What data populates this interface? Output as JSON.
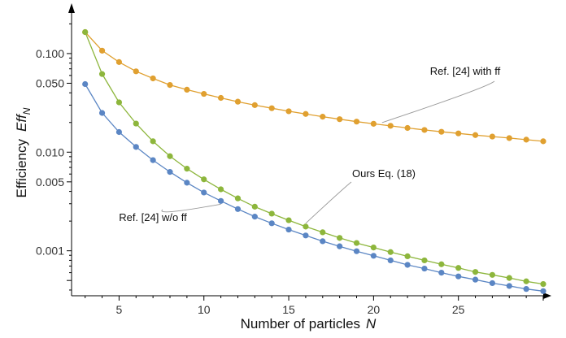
{
  "chart_data": {
    "type": "line",
    "title": "",
    "xlabel": "Number of particles",
    "xlabel_var": "N",
    "ylabel": "Efficiency",
    "ylabel_var": "Eff",
    "ylabel_sub": "N",
    "y_scale": "log",
    "xlim": [
      2.2,
      30
    ],
    "ylim": [
      0.00035,
      0.3
    ],
    "x_ticks": [
      5,
      10,
      15,
      20,
      25
    ],
    "x_tick_labels": [
      "5",
      "10",
      "15",
      "20",
      "25"
    ],
    "y_ticks": [
      0.1,
      0.05,
      0.01,
      0.005,
      0.001
    ],
    "y_tick_labels": [
      "0.100",
      "0.050",
      "0.010",
      "0.005",
      "0.001"
    ],
    "grid": false,
    "series": [
      {
        "name": "Ref. [24] with ff",
        "color": "#E0A030",
        "x": [
          3,
          4,
          5,
          6,
          7,
          8,
          9,
          10,
          11,
          12,
          13,
          14,
          15,
          16,
          17,
          18,
          19,
          20,
          21,
          22,
          23,
          24,
          25,
          26,
          27,
          28,
          29,
          30
        ],
        "y": [
          0.165,
          0.107,
          0.082,
          0.066,
          0.056,
          0.048,
          0.043,
          0.039,
          0.0355,
          0.0325,
          0.03,
          0.0279,
          0.026,
          0.0244,
          0.0229,
          0.0216,
          0.0204,
          0.0194,
          0.0185,
          0.0176,
          0.0168,
          0.0161,
          0.0155,
          0.0149,
          0.0144,
          0.0139,
          0.0134,
          0.0129
        ]
      },
      {
        "name": "Ours Eq. (18)",
        "color": "#8DB63C",
        "x": [
          3,
          4,
          5,
          6,
          7,
          8,
          9,
          10,
          11,
          12,
          13,
          14,
          15,
          16,
          17,
          18,
          19,
          20,
          21,
          22,
          23,
          24,
          25,
          26,
          27,
          28,
          29,
          30
        ],
        "y": [
          0.165,
          0.062,
          0.032,
          0.0195,
          0.0129,
          0.0091,
          0.0068,
          0.0053,
          0.0042,
          0.0034,
          0.0028,
          0.00238,
          0.00204,
          0.00176,
          0.00154,
          0.00135,
          0.0012,
          0.00108,
          0.00097,
          0.00088,
          0.0008,
          0.00073,
          0.00067,
          0.00061,
          0.00057,
          0.00053,
          0.00049,
          0.00046
        ]
      },
      {
        "name": "Ref. [24] w/o ff",
        "color": "#5B86C4",
        "x": [
          3,
          4,
          5,
          6,
          7,
          8,
          9,
          10,
          11,
          12,
          13,
          14,
          15,
          16,
          17,
          18,
          19,
          20,
          21,
          22,
          23,
          24,
          25,
          26,
          27,
          28,
          29,
          30
        ],
        "y": [
          0.049,
          0.025,
          0.016,
          0.0113,
          0.0083,
          0.0063,
          0.0049,
          0.0039,
          0.0032,
          0.00265,
          0.00222,
          0.0019,
          0.00164,
          0.00143,
          0.00125,
          0.00111,
          0.00099,
          0.00089,
          0.0008,
          0.00072,
          0.00066,
          0.0006,
          0.00055,
          0.00051,
          0.00047,
          0.00044,
          0.00041,
          0.00039
        ]
      }
    ],
    "annotations": [
      {
        "series": 0,
        "text": "Ref. [24] with ff"
      },
      {
        "series": 1,
        "text": "Ours Eq. (18)"
      },
      {
        "series": 2,
        "text": "Ref. [24] w/o ff"
      }
    ]
  }
}
